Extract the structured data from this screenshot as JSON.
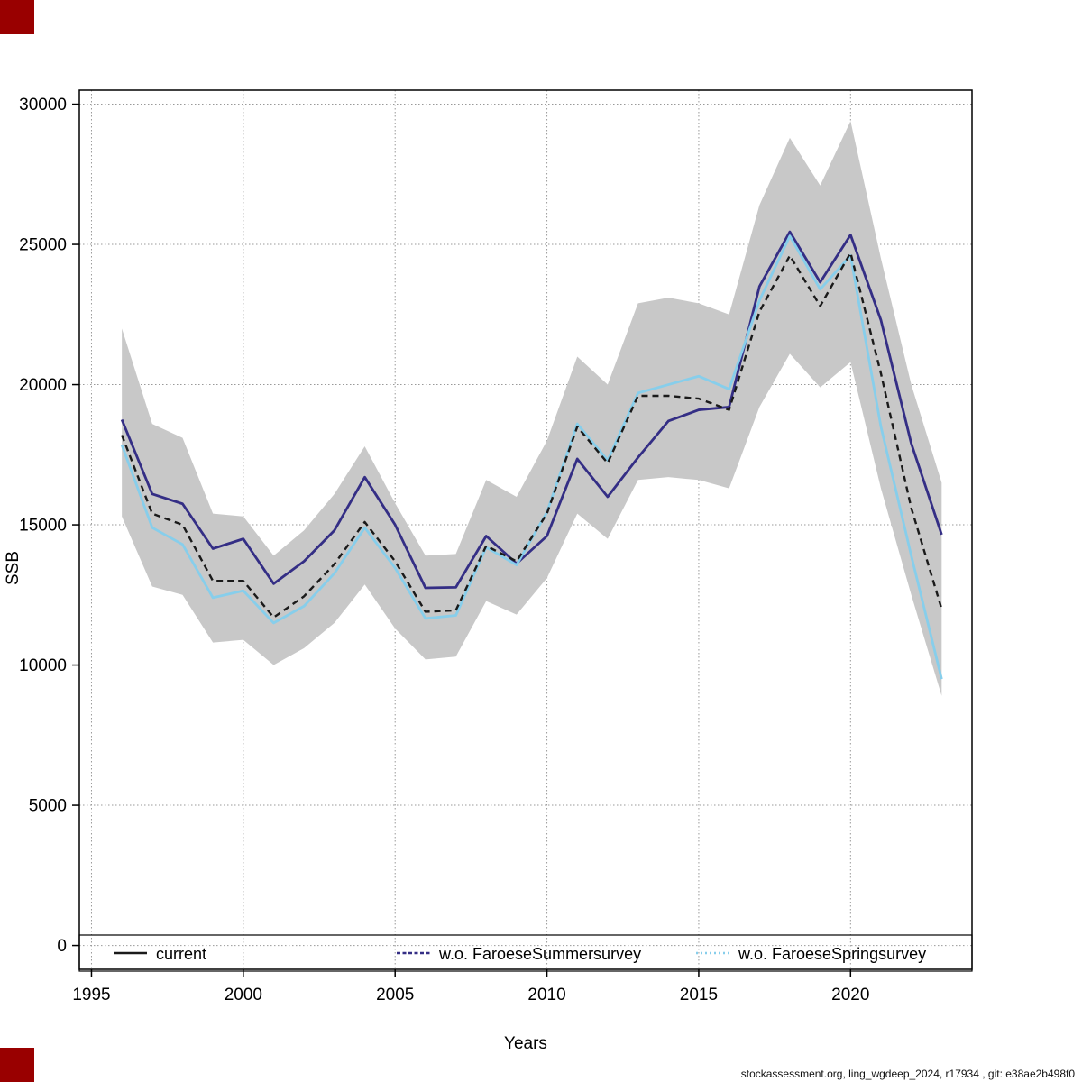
{
  "chart_data": {
    "type": "line",
    "title": "",
    "xlabel": "Years",
    "ylabel": "SSB",
    "footer": "stockassessment.org, ling_wgdeep_2024, r17934 , git: e38ae2b498f0",
    "x_ticks": [
      1995,
      2000,
      2005,
      2010,
      2015,
      2020
    ],
    "y_ticks": [
      0,
      5000,
      10000,
      15000,
      20000,
      25000,
      30000
    ],
    "xlim": [
      1994.6,
      2024.0
    ],
    "ylim": [
      -850,
      30500
    ],
    "grid": "dotted",
    "legend_position": "bottom",
    "x": [
      1996,
      1997,
      1998,
      1999,
      2000,
      2001,
      2002,
      2003,
      2004,
      2005,
      2006,
      2007,
      2008,
      2009,
      2010,
      2011,
      2012,
      2013,
      2014,
      2015,
      2016,
      2017,
      2018,
      2019,
      2020,
      2021,
      2022,
      2023
    ],
    "band": {
      "name": "confidence-band",
      "color": "#c8c8c8",
      "lo": [
        15300,
        12800,
        12500,
        10800,
        10900,
        10000,
        10600,
        11500,
        12870,
        11300,
        10200,
        10300,
        12280,
        11800,
        13100,
        15400,
        14500,
        16600,
        16700,
        16600,
        16300,
        19200,
        21100,
        19900,
        20800,
        16300,
        12500,
        8900
      ],
      "hi": [
        22000,
        18600,
        18100,
        15400,
        15300,
        13900,
        14800,
        16100,
        17800,
        15770,
        13900,
        13960,
        16600,
        16000,
        18000,
        21000,
        20000,
        22900,
        23100,
        22900,
        22500,
        26400,
        28800,
        27100,
        29400,
        24500,
        20000,
        16500
      ]
    },
    "series": [
      {
        "name": "current",
        "color": "#1a1a1a",
        "style": "dashed",
        "values": [
          18200,
          15400,
          15000,
          13000,
          13000,
          11700,
          12450,
          13600,
          15100,
          13700,
          11900,
          11950,
          14250,
          13700,
          15400,
          18500,
          17200,
          19600,
          19600,
          19500,
          19100,
          22600,
          24600,
          22800,
          24700,
          20400,
          15600,
          12000
        ]
      },
      {
        "name": "w.o. FaroeseSummersurvey",
        "color": "#342e85",
        "style": "solid",
        "values": [
          18750,
          16100,
          15750,
          14150,
          14500,
          12900,
          13700,
          14800,
          16700,
          15000,
          12750,
          12770,
          14600,
          13620,
          14600,
          17350,
          16000,
          17400,
          18700,
          19100,
          19200,
          23500,
          25450,
          23650,
          25340,
          22300,
          17900,
          14650
        ]
      },
      {
        "name": "w.o. FaroeseSpringsurvey",
        "color": "#87ceeb",
        "style": "solid",
        "values": [
          17850,
          14900,
          14300,
          12400,
          12650,
          11500,
          12100,
          13270,
          14900,
          13460,
          11660,
          11770,
          14200,
          13570,
          15450,
          18600,
          17300,
          19700,
          20000,
          20300,
          19840,
          23000,
          25300,
          23400,
          24600,
          18500,
          13900,
          9500
        ]
      }
    ]
  },
  "decorations": {
    "corner_marker_color": "#990000"
  }
}
